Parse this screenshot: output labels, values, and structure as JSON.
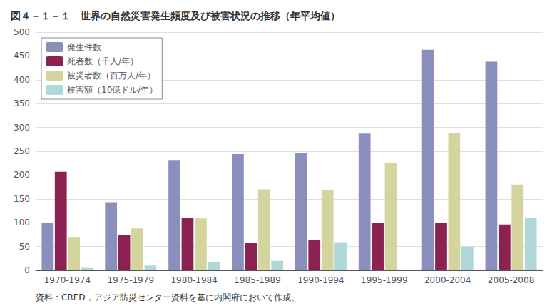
{
  "chart_data": {
    "type": "bar",
    "title": "図４－１－１　世界の自然災害発生頻度及び被害状況の推移（年平均値）",
    "categories": [
      "1970-1974",
      "1975-1979",
      "1980-1984",
      "1985-1989",
      "1990-1994",
      "1995-1999",
      "2000-2004",
      "2005-2008"
    ],
    "series": [
      {
        "name": "発生件数",
        "color": "#8b8fbe",
        "values": [
          100,
          143,
          230,
          244,
          247,
          287,
          463,
          438
        ]
      },
      {
        "name": "死者数（千人/年）",
        "color": "#8b2252",
        "values": [
          207,
          74,
          110,
          57,
          63,
          99,
          100,
          96
        ]
      },
      {
        "name": "被災者数（百万人/年）",
        "color": "#d4d49e",
        "values": [
          70,
          88,
          109,
          170,
          168,
          225,
          288,
          180
        ]
      },
      {
        "name": "被害額（10億ドル/年）",
        "color": "#b0d8d8",
        "values": [
          5,
          10,
          18,
          20,
          59,
          1,
          50,
          110
        ]
      }
    ],
    "ylim": [
      0,
      500
    ],
    "yticks": [
      0,
      50,
      100,
      150,
      200,
      250,
      300,
      350,
      400,
      450,
      500
    ],
    "grid": true,
    "legend": "upper left",
    "annotations": [
      "資料：CRED，アジア防災センター資料を基に内閣府において作成。"
    ]
  }
}
